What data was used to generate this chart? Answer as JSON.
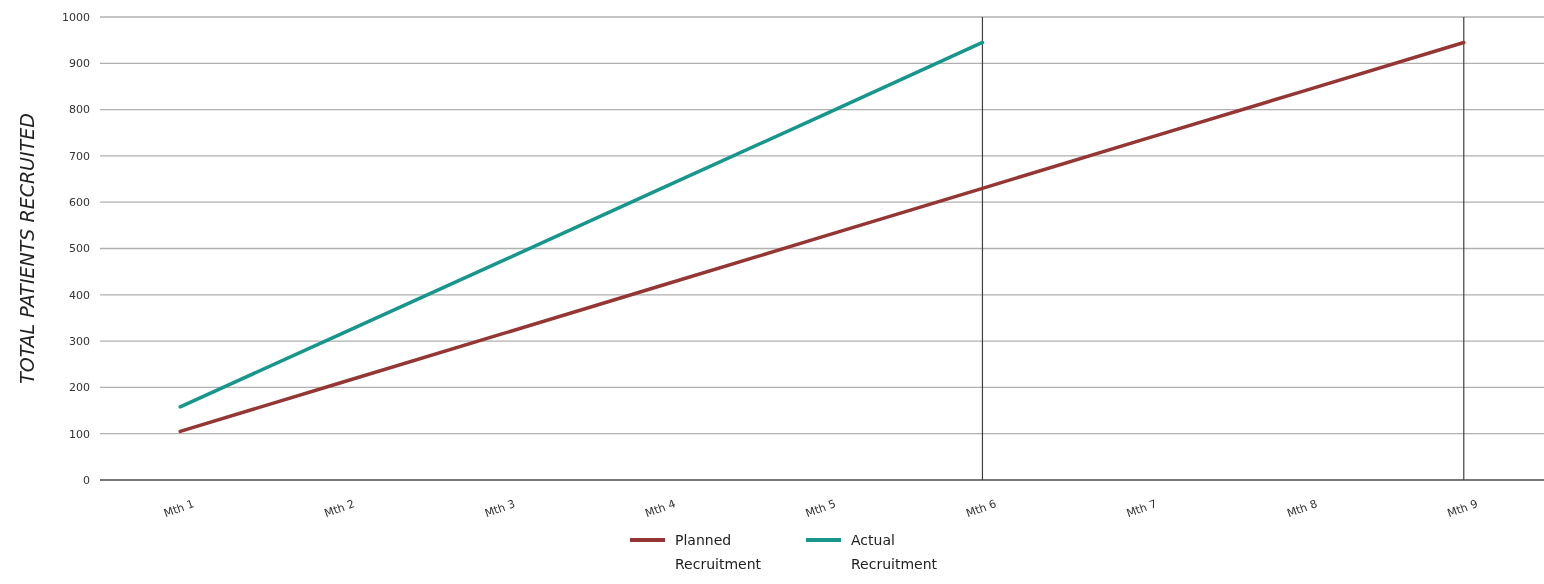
{
  "chart_data": {
    "type": "line",
    "ylabel": "TOTAL PATIENTS RECRUITED",
    "categories": [
      "Mth 1",
      "Mth 2",
      "Mth 3",
      "Mth 4",
      "Mth 5",
      "Mth 6",
      "Mth 7",
      "Mth 8",
      "Mth 9"
    ],
    "series": [
      {
        "name": "Planned Recruitment",
        "color": "#943634",
        "values": [
          105,
          210,
          315,
          420,
          525,
          630,
          735,
          840,
          945
        ]
      },
      {
        "name": "Actual Recruitment",
        "color": "#17968c",
        "values": [
          158,
          315,
          472,
          630,
          787,
          945,
          null,
          null,
          null
        ]
      }
    ],
    "ylim": [
      0,
      1000
    ],
    "yticks": [
      0,
      100,
      200,
      300,
      400,
      500,
      600,
      700,
      800,
      900,
      1000
    ],
    "grid": "y",
    "legend": "bottom",
    "marker": "none",
    "line_style": "solid",
    "ref_lines": [
      {
        "axis": "x",
        "value": "Mth 6",
        "color": "#404040"
      },
      {
        "axis": "x",
        "value": "Mth 9",
        "color": "#404040"
      }
    ]
  }
}
